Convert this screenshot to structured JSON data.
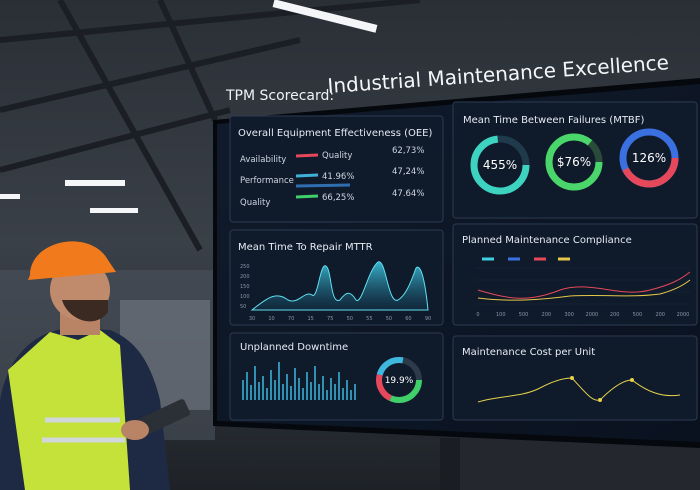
{
  "title": {
    "prefix": "TPM Scorecard:",
    "main": "Industrial Maintenance Excellence"
  },
  "panels": {
    "oee": {
      "title": "Overall Equipment Effectiveness (OEE)",
      "rows": [
        [
          "Availability",
          "Quality",
          "62,73%"
        ],
        [
          "Performance",
          "41.96%",
          "47,24%"
        ],
        [
          "Quality",
          "66,25%",
          "47.64%"
        ]
      ]
    },
    "mtbf": {
      "title": "Mean Time Between Failures (MTBF)",
      "gauges": [
        "455%",
        "$76%",
        "126%"
      ]
    },
    "mttr": {
      "title": "Mean Time To Repair MTTR",
      "y_labels": [
        "250",
        "200",
        "150",
        "100",
        "50"
      ],
      "x_labels": [
        "30",
        "10",
        "70",
        "15",
        "75",
        "50",
        "55",
        "50",
        "60",
        "90"
      ]
    },
    "pmc": {
      "title": "Planned Maintenance Compliance",
      "x_labels": [
        "0",
        "100",
        "500",
        "200",
        "300",
        "2000",
        "200",
        "500",
        "200",
        "2000"
      ]
    },
    "downtime": {
      "title": "Unplanned Downtime",
      "gauge": "19.9%"
    },
    "cost": {
      "title": "Maintenance Cost per Unit"
    }
  }
}
